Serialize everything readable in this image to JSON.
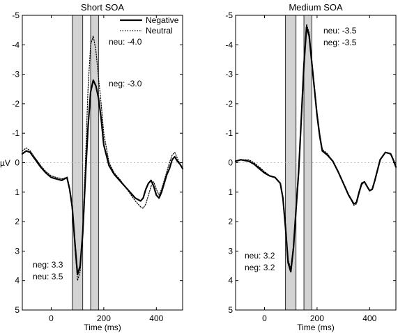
{
  "chart_data": [
    {
      "type": "line",
      "title": "Short SOA",
      "xlabel": "Time (ms)",
      "ylabel": "µV",
      "xlim": [
        -110,
        500
      ],
      "ylim": [
        -5,
        5
      ],
      "y_inverted": true,
      "grid": false,
      "zero_line": true,
      "xticks": [
        0,
        200,
        400
      ],
      "yticks": [
        -5,
        -4,
        -3,
        -2,
        -1,
        0,
        1,
        2,
        3,
        4,
        5
      ],
      "legend": {
        "placement": "top-right",
        "entries": [
          "Negative",
          "Neutral"
        ]
      },
      "shaded_windows": [
        [
          80,
          120
        ],
        [
          150,
          180
        ]
      ],
      "series": [
        {
          "name": "Negative",
          "style": "solid",
          "x": [
            -110,
            -95,
            -80,
            -60,
            -40,
            -20,
            0,
            20,
            40,
            60,
            70,
            80,
            90,
            100,
            110,
            120,
            130,
            140,
            150,
            160,
            170,
            180,
            190,
            200,
            220,
            240,
            260,
            280,
            300,
            320,
            340,
            350,
            360,
            370,
            380,
            390,
            400,
            410,
            420,
            430,
            440,
            450,
            460,
            470,
            480,
            490,
            500
          ],
          "y": [
            -0.3,
            -0.4,
            -0.35,
            -0.1,
            0.15,
            0.35,
            0.5,
            0.55,
            0.6,
            0.5,
            0.9,
            1.5,
            2.7,
            3.8,
            3.5,
            2.4,
            0.5,
            -1.2,
            -2.4,
            -2.8,
            -2.6,
            -2.2,
            -1.5,
            -0.6,
            0.1,
            0.4,
            0.6,
            0.8,
            1.0,
            1.2,
            1.3,
            1.2,
            0.9,
            0.7,
            0.6,
            0.8,
            1.1,
            1.2,
            1.0,
            0.7,
            0.4,
            0.2,
            -0.1,
            -0.2,
            -0.05,
            0.05,
            0.2
          ]
        },
        {
          "name": "Neutral",
          "style": "dotted",
          "x": [
            -110,
            -95,
            -80,
            -60,
            -40,
            -20,
            0,
            20,
            40,
            60,
            70,
            80,
            90,
            100,
            110,
            120,
            130,
            140,
            150,
            160,
            170,
            180,
            190,
            200,
            220,
            240,
            260,
            280,
            300,
            320,
            340,
            350,
            360,
            370,
            380,
            390,
            400,
            410,
            420,
            430,
            440,
            450,
            460,
            470,
            480,
            490,
            500
          ],
          "y": [
            -0.4,
            -0.5,
            -0.4,
            -0.15,
            0.1,
            0.3,
            0.45,
            0.5,
            0.55,
            0.5,
            0.9,
            1.6,
            2.8,
            4.0,
            3.7,
            2.3,
            0.0,
            -2.5,
            -4.0,
            -4.3,
            -3.8,
            -2.9,
            -2.0,
            -1.0,
            0.0,
            0.35,
            0.55,
            0.8,
            1.05,
            1.3,
            1.5,
            1.55,
            1.4,
            1.1,
            0.8,
            0.65,
            0.9,
            1.1,
            0.9,
            0.6,
            0.3,
            0.0,
            -0.25,
            -0.35,
            -0.15,
            0.05,
            0.2
          ]
        }
      ],
      "annotations": [
        "neu: -4.0",
        "neg: -3.0",
        "neg: 3.3",
        "neu: 3.5"
      ]
    },
    {
      "type": "line",
      "title": "Medium SOA",
      "xlabel": "Time (ms)",
      "ylabel": "",
      "xlim": [
        -110,
        500
      ],
      "ylim": [
        -5,
        5
      ],
      "y_inverted": true,
      "grid": false,
      "zero_line": true,
      "xticks": [
        0,
        200,
        400
      ],
      "yticks": [
        -5,
        -4,
        -3,
        -2,
        -1,
        0,
        1,
        2,
        3,
        4,
        5
      ],
      "shaded_windows": [
        [
          80,
          120
        ],
        [
          150,
          180
        ]
      ],
      "series": [
        {
          "name": "Negative",
          "style": "solid",
          "x": [
            -110,
            -90,
            -60,
            -40,
            -20,
            0,
            20,
            40,
            60,
            70,
            80,
            90,
            100,
            110,
            120,
            130,
            140,
            150,
            160,
            170,
            180,
            190,
            200,
            210,
            220,
            240,
            260,
            280,
            300,
            320,
            340,
            350,
            360,
            370,
            380,
            390,
            400,
            410,
            420,
            440,
            460,
            480,
            490,
            500
          ],
          "y": [
            -0.05,
            -0.1,
            -0.05,
            0.05,
            0.2,
            0.35,
            0.45,
            0.5,
            0.7,
            1.2,
            2.2,
            3.4,
            3.7,
            2.9,
            1.6,
            0.3,
            -1.5,
            -3.3,
            -4.6,
            -4.3,
            -3.4,
            -2.5,
            -1.6,
            -0.9,
            -0.4,
            -0.25,
            -0.05,
            0.3,
            0.7,
            1.1,
            1.4,
            1.35,
            1.0,
            0.7,
            0.65,
            0.8,
            0.95,
            0.9,
            0.6,
            -0.1,
            -0.35,
            -0.3,
            -0.1,
            0.15
          ]
        },
        {
          "name": "Neutral",
          "style": "dotted",
          "x": [
            -110,
            -90,
            -60,
            -40,
            -20,
            0,
            20,
            40,
            60,
            70,
            80,
            90,
            100,
            110,
            120,
            130,
            140,
            150,
            160,
            170,
            180,
            190,
            200,
            210,
            220,
            240,
            260,
            280,
            300,
            320,
            340,
            350,
            360,
            370,
            380,
            390,
            400,
            410,
            420,
            440,
            460,
            480,
            490,
            500
          ],
          "y": [
            -0.05,
            -0.1,
            -0.1,
            0.0,
            0.15,
            0.3,
            0.45,
            0.5,
            0.7,
            1.2,
            2.1,
            3.3,
            3.6,
            2.8,
            1.5,
            0.2,
            -1.6,
            -3.4,
            -4.7,
            -4.4,
            -3.5,
            -2.6,
            -1.7,
            -1.0,
            -0.45,
            -0.3,
            -0.05,
            0.3,
            0.7,
            1.1,
            1.45,
            1.4,
            1.05,
            0.75,
            0.65,
            0.8,
            0.95,
            0.9,
            0.6,
            -0.1,
            -0.35,
            -0.3,
            -0.1,
            0.15
          ]
        }
      ],
      "annotations": [
        "neu: -3.5",
        "neg: -3.5",
        "neu: 3.2",
        "neg: 3.2"
      ]
    }
  ]
}
